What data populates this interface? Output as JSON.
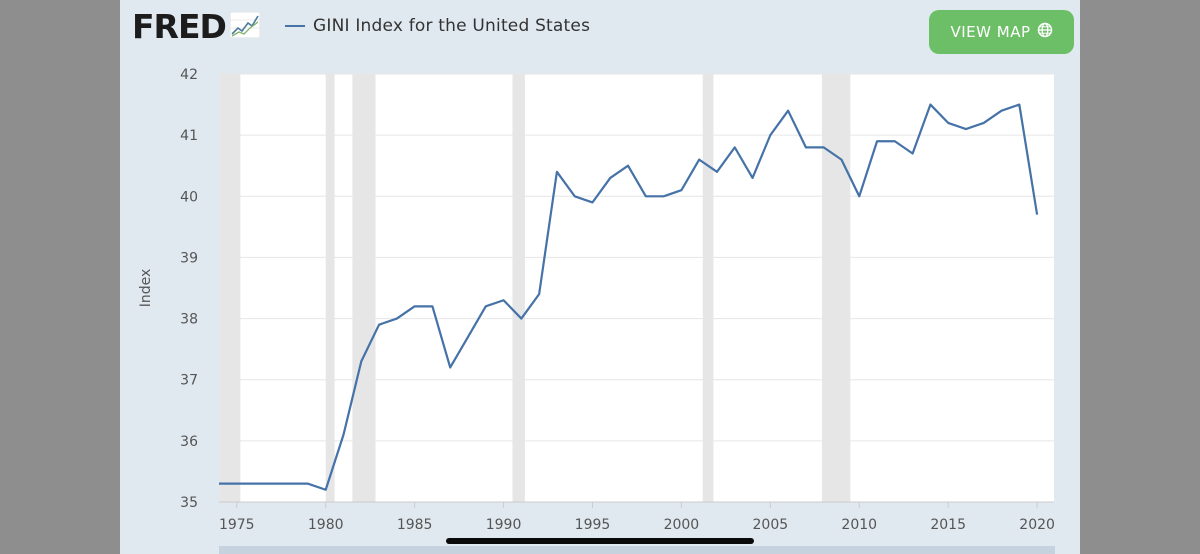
{
  "logo": {
    "text": "FRED"
  },
  "header": {
    "view_map_label": "VIEW MAP"
  },
  "chart_data": {
    "type": "line",
    "title": "",
    "xlabel": "",
    "ylabel": "Index",
    "ylim": [
      35,
      42
    ],
    "xlim": [
      1974,
      2020.95
    ],
    "grid": true,
    "legend_position": "top-left",
    "y_ticks": [
      35,
      36,
      37,
      38,
      39,
      40,
      41,
      42
    ],
    "x_ticks": [
      1975,
      1980,
      1985,
      1990,
      1995,
      2000,
      2005,
      2010,
      2015,
      2020
    ],
    "recessions": [
      [
        1974,
        1975.2
      ],
      [
        1980.0,
        1980.5
      ],
      [
        1981.5,
        1982.8
      ],
      [
        1990.5,
        1991.2
      ],
      [
        2001.2,
        2001.8
      ],
      [
        2007.9,
        2009.5
      ]
    ],
    "series": [
      {
        "name": "GINI Index for the United States",
        "color": "#4572a7",
        "x": [
          1974,
          1975,
          1976,
          1977,
          1978,
          1979,
          1980,
          1981,
          1982,
          1983,
          1984,
          1985,
          1986,
          1987,
          1988,
          1989,
          1990,
          1991,
          1992,
          1993,
          1994,
          1995,
          1996,
          1997,
          1998,
          1999,
          2000,
          2001,
          2002,
          2003,
          2004,
          2005,
          2006,
          2007,
          2008,
          2009,
          2010,
          2011,
          2012,
          2013,
          2014,
          2015,
          2016,
          2017,
          2018,
          2019,
          2020
        ],
        "values": [
          35.3,
          35.3,
          35.3,
          35.3,
          35.3,
          35.3,
          35.2,
          36.1,
          37.3,
          37.9,
          38.0,
          38.2,
          38.2,
          37.2,
          37.7,
          38.2,
          38.3,
          38.0,
          38.4,
          40.4,
          40.0,
          39.9,
          40.3,
          40.5,
          40.0,
          40.0,
          40.1,
          40.6,
          40.4,
          40.8,
          40.3,
          41.0,
          41.4,
          40.8,
          40.8,
          40.6,
          40.0,
          40.9,
          40.9,
          40.7,
          41.5,
          41.2,
          41.1,
          41.2,
          41.4,
          41.5,
          39.7
        ]
      }
    ]
  },
  "icons": {
    "logo_graph": "fred-graph-icon",
    "globe": "globe-icon"
  }
}
